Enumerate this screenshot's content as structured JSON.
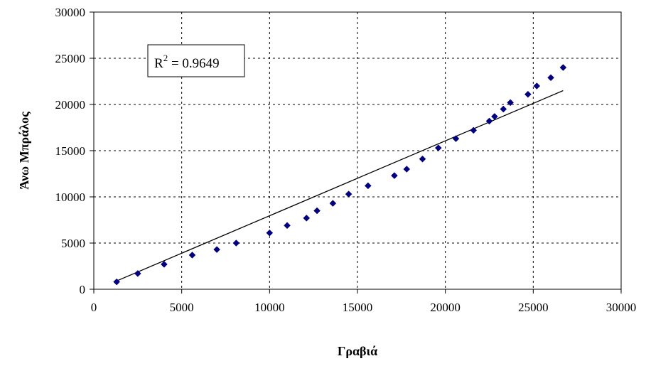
{
  "chart_data": {
    "type": "scatter",
    "title": "",
    "xlabel": "Γραβιά",
    "ylabel": "Άνω Μπράλος",
    "xlim": [
      0,
      30000
    ],
    "ylim": [
      0,
      30000
    ],
    "x_ticks": [
      "0",
      "5000",
      "10000",
      "15000",
      "20000",
      "25000",
      "30000"
    ],
    "y_ticks": [
      "0",
      "5000",
      "10000",
      "15000",
      "20000",
      "25000",
      "30000"
    ],
    "grid": true,
    "legend": "none",
    "annotation": {
      "base": "R",
      "sup": "2",
      "rest": " = 0.9649"
    },
    "series": [
      {
        "color": "#000080",
        "points": [
          [
            1300,
            800
          ],
          [
            2500,
            1700
          ],
          [
            4000,
            2700
          ],
          [
            5600,
            3700
          ],
          [
            7000,
            4300
          ],
          [
            8100,
            5000
          ],
          [
            10000,
            6100
          ],
          [
            11000,
            6900
          ],
          [
            12100,
            7700
          ],
          [
            12700,
            8500
          ],
          [
            13600,
            9300
          ],
          [
            14500,
            10300
          ],
          [
            15600,
            11200
          ],
          [
            17100,
            12300
          ],
          [
            17800,
            13000
          ],
          [
            18700,
            14100
          ],
          [
            19600,
            15300
          ],
          [
            20600,
            16300
          ],
          [
            21600,
            17200
          ],
          [
            22500,
            18200
          ],
          [
            22800,
            18700
          ],
          [
            23300,
            19500
          ],
          [
            23700,
            20200
          ],
          [
            24700,
            21100
          ],
          [
            25200,
            22000
          ],
          [
            26000,
            22900
          ],
          [
            26700,
            24000
          ]
        ]
      }
    ],
    "trendline": {
      "x": [
        1300,
        26700
      ],
      "y": [
        900,
        21500
      ],
      "color": "#000000"
    }
  }
}
